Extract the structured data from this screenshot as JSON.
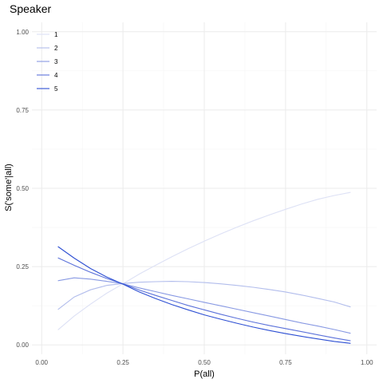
{
  "chart_data": {
    "type": "line",
    "title": "Speaker",
    "xlabel": "P(all)",
    "ylabel": "S('some'|all)",
    "xlim": [
      -0.03,
      1.03
    ],
    "ylim": [
      -0.03,
      1.03
    ],
    "x_ticks": [
      0.0,
      0.25,
      0.5,
      0.75,
      1.0
    ],
    "x_tick_labels": [
      "0.00",
      "0.25",
      "0.50",
      "0.75",
      "1.00"
    ],
    "y_ticks": [
      0.0,
      0.25,
      0.5,
      0.75,
      1.0
    ],
    "y_tick_labels": [
      "0.00",
      "0.25",
      "0.50",
      "0.75",
      "1.00"
    ],
    "grid": true,
    "legend_position": "top-left",
    "x": [
      0.05,
      0.1,
      0.15,
      0.2,
      0.25,
      0.3,
      0.35,
      0.4,
      0.45,
      0.5,
      0.55,
      0.6,
      0.65,
      0.7,
      0.75,
      0.8,
      0.85,
      0.9,
      0.95
    ],
    "series": [
      {
        "name": "1",
        "color": "#dde1f5",
        "values": [
          0.048,
          0.092,
          0.13,
          0.165,
          0.195,
          0.226,
          0.254,
          0.281,
          0.307,
          0.331,
          0.354,
          0.376,
          0.396,
          0.415,
          0.433,
          0.45,
          0.465,
          0.477,
          0.487
        ]
      },
      {
        "name": "2",
        "color": "#b2bdec",
        "values": [
          0.113,
          0.153,
          0.176,
          0.19,
          0.196,
          0.2,
          0.202,
          0.203,
          0.202,
          0.199,
          0.195,
          0.19,
          0.184,
          0.177,
          0.169,
          0.159,
          0.148,
          0.137,
          0.121
        ]
      },
      {
        "name": "3",
        "color": "#8899e3",
        "values": [
          0.205,
          0.214,
          0.21,
          0.203,
          0.195,
          0.182,
          0.17,
          0.158,
          0.147,
          0.136,
          0.125,
          0.114,
          0.103,
          0.092,
          0.081,
          0.07,
          0.06,
          0.049,
          0.037
        ]
      },
      {
        "name": "4",
        "color": "#5c72da",
        "values": [
          0.278,
          0.254,
          0.232,
          0.212,
          0.195,
          0.175,
          0.158,
          0.142,
          0.126,
          0.112,
          0.098,
          0.085,
          0.073,
          0.062,
          0.052,
          0.042,
          0.032,
          0.022,
          0.013
        ]
      },
      {
        "name": "5",
        "color": "#2d4fd3",
        "values": [
          0.314,
          0.277,
          0.244,
          0.217,
          0.194,
          0.169,
          0.148,
          0.129,
          0.112,
          0.096,
          0.082,
          0.069,
          0.057,
          0.046,
          0.036,
          0.027,
          0.019,
          0.011,
          0.005
        ]
      }
    ]
  }
}
